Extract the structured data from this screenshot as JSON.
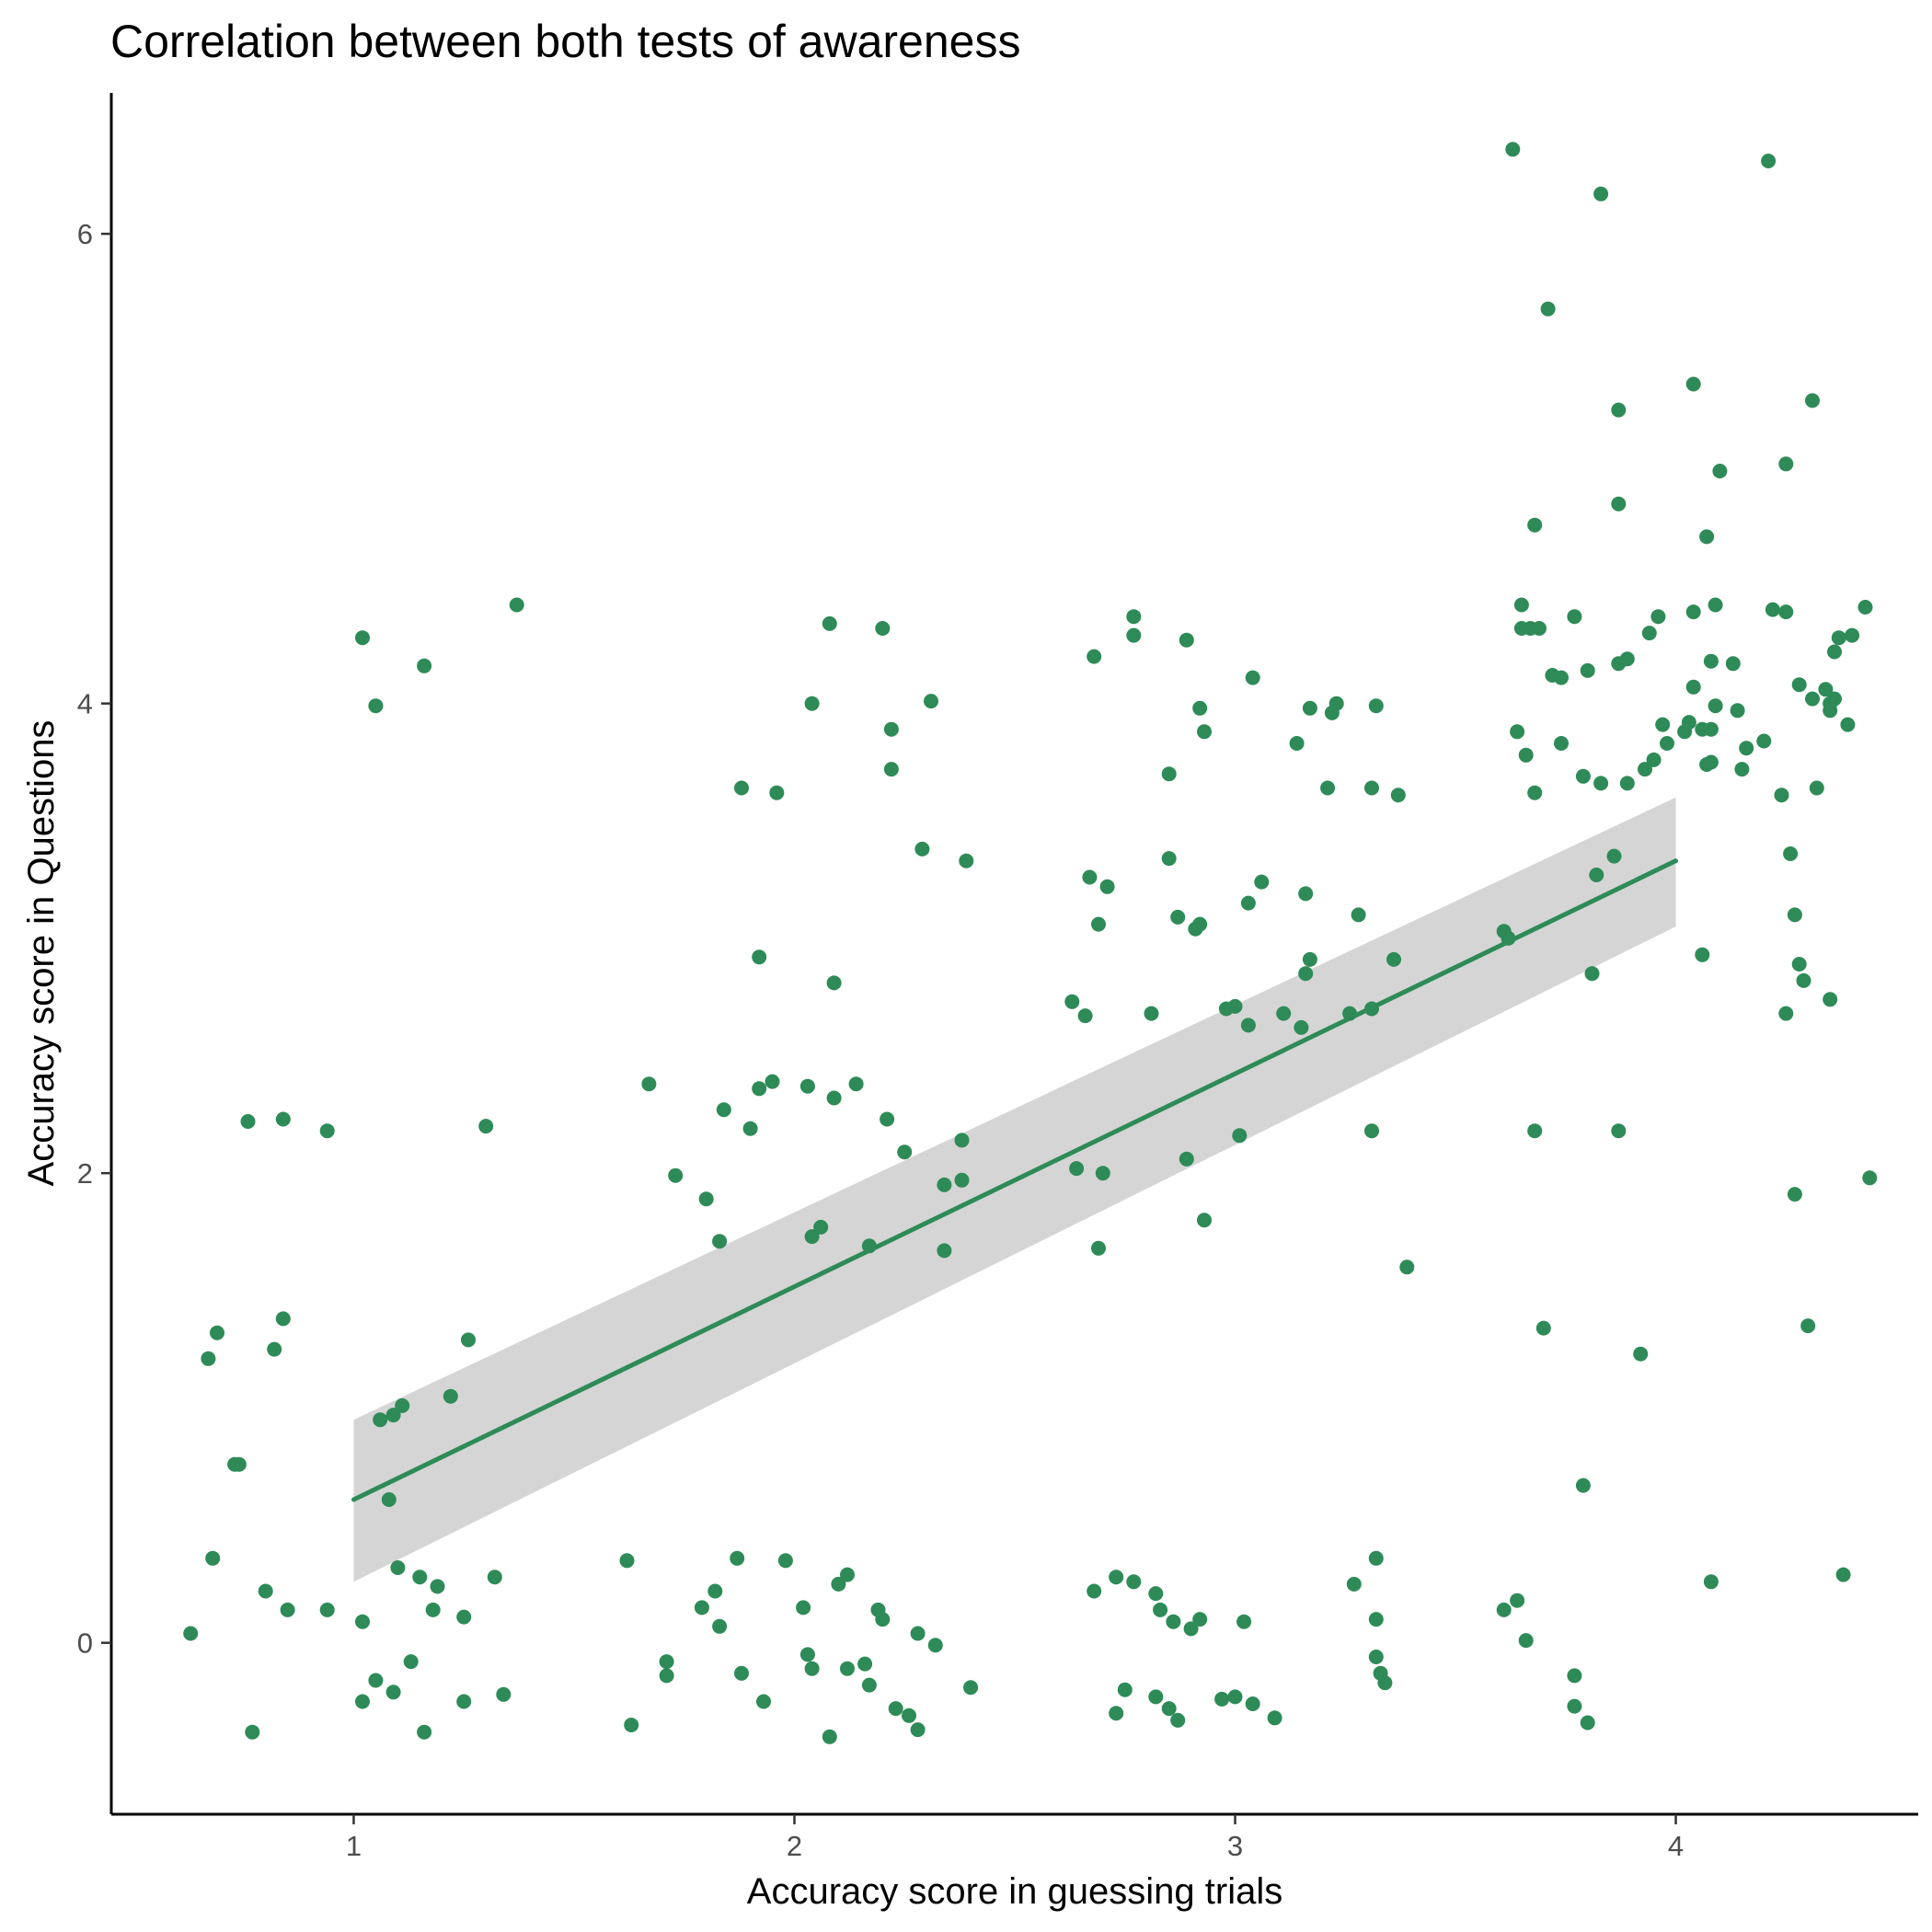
{
  "chart_data": {
    "type": "scatter",
    "title": "Correlation between both tests of awareness",
    "xlabel": "Accuracy score in guessing trials",
    "ylabel": "Accuracy score in Questions",
    "xlim": [
      0.45,
      4.55
    ],
    "ylim": [
      -0.73,
      6.6
    ],
    "xticks": [
      1,
      2,
      3,
      4
    ],
    "yticks": [
      0,
      2,
      4,
      6
    ],
    "grid": false,
    "legend": "none",
    "colors": {
      "points": "#2e8b57",
      "fit_line": "#2e8b57",
      "confidence_band": "#d3d3d3"
    },
    "fit": {
      "method": "linear",
      "x": [
        1,
        4
      ],
      "y": [
        0.61,
        3.33
      ],
      "ci_lower": [
        0.26,
        3.05
      ],
      "ci_upper": [
        0.95,
        3.6
      ]
    },
    "points": [
      [
        0.63,
        0.04
      ],
      [
        0.67,
        1.21
      ],
      [
        0.68,
        0.36
      ],
      [
        0.69,
        1.32
      ],
      [
        0.73,
        0.76
      ],
      [
        0.74,
        0.76
      ],
      [
        0.76,
        2.22
      ],
      [
        0.77,
        -0.38
      ],
      [
        0.8,
        0.22
      ],
      [
        0.82,
        1.25
      ],
      [
        0.84,
        1.38
      ],
      [
        0.84,
        2.23
      ],
      [
        0.85,
        0.14
      ],
      [
        0.94,
        0.14
      ],
      [
        0.94,
        2.18
      ],
      [
        1.02,
        4.28
      ],
      [
        1.02,
        0.09
      ],
      [
        1.02,
        -0.25
      ],
      [
        1.05,
        3.99
      ],
      [
        1.05,
        -0.16
      ],
      [
        1.06,
        0.95
      ],
      [
        1.08,
        0.61
      ],
      [
        1.09,
        0.97
      ],
      [
        1.09,
        -0.21
      ],
      [
        1.1,
        0.32
      ],
      [
        1.11,
        1.01
      ],
      [
        1.13,
        -0.08
      ],
      [
        1.15,
        0.28
      ],
      [
        1.16,
        4.16
      ],
      [
        1.16,
        -0.38
      ],
      [
        1.18,
        0.14
      ],
      [
        1.19,
        0.24
      ],
      [
        1.22,
        1.05
      ],
      [
        1.25,
        0.11
      ],
      [
        1.25,
        -0.25
      ],
      [
        1.26,
        1.29
      ],
      [
        1.3,
        2.2
      ],
      [
        1.32,
        0.28
      ],
      [
        1.34,
        -0.22
      ],
      [
        1.37,
        4.42
      ],
      [
        1.62,
        0.35
      ],
      [
        1.63,
        -0.35
      ],
      [
        1.67,
        2.38
      ],
      [
        1.71,
        -0.08
      ],
      [
        1.71,
        -0.14
      ],
      [
        1.73,
        1.99
      ],
      [
        1.79,
        0.15
      ],
      [
        1.8,
        1.89
      ],
      [
        1.82,
        0.22
      ],
      [
        1.83,
        0.07
      ],
      [
        1.83,
        1.71
      ],
      [
        1.84,
        2.27
      ],
      [
        1.87,
        0.36
      ],
      [
        1.88,
        3.64
      ],
      [
        1.88,
        -0.13
      ],
      [
        1.9,
        2.19
      ],
      [
        1.92,
        2.36
      ],
      [
        1.92,
        2.92
      ],
      [
        1.93,
        -0.25
      ],
      [
        1.95,
        2.39
      ],
      [
        1.96,
        3.62
      ],
      [
        1.98,
        0.35
      ],
      [
        2.02,
        0.15
      ],
      [
        2.03,
        -0.05
      ],
      [
        2.03,
        2.37
      ],
      [
        2.04,
        -0.11
      ],
      [
        2.04,
        4.0
      ],
      [
        2.04,
        1.73
      ],
      [
        2.06,
        1.77
      ],
      [
        2.08,
        4.34
      ],
      [
        2.08,
        -0.4
      ],
      [
        2.09,
        2.81
      ],
      [
        2.09,
        2.32
      ],
      [
        2.1,
        0.25
      ],
      [
        2.12,
        0.29
      ],
      [
        2.12,
        -0.11
      ],
      [
        2.14,
        2.38
      ],
      [
        2.16,
        -0.09
      ],
      [
        2.17,
        1.69
      ],
      [
        2.17,
        -0.18
      ],
      [
        2.19,
        0.14
      ],
      [
        2.2,
        0.1
      ],
      [
        2.2,
        4.32
      ],
      [
        2.21,
        2.23
      ],
      [
        2.22,
        3.89
      ],
      [
        2.22,
        3.72
      ],
      [
        2.23,
        -0.28
      ],
      [
        2.25,
        2.09
      ],
      [
        2.26,
        -0.31
      ],
      [
        2.28,
        0.04
      ],
      [
        2.28,
        -0.37
      ],
      [
        2.29,
        3.38
      ],
      [
        2.31,
        4.01
      ],
      [
        2.32,
        -0.01
      ],
      [
        2.34,
        1.67
      ],
      [
        2.34,
        1.95
      ],
      [
        2.38,
        2.14
      ],
      [
        2.38,
        1.97
      ],
      [
        2.39,
        3.33
      ],
      [
        2.4,
        -0.19
      ],
      [
        2.63,
        2.73
      ],
      [
        2.64,
        2.02
      ],
      [
        2.66,
        2.67
      ],
      [
        2.67,
        3.26
      ],
      [
        2.68,
        0.22
      ],
      [
        2.68,
        4.2
      ],
      [
        2.69,
        3.06
      ],
      [
        2.69,
        1.68
      ],
      [
        2.7,
        2.0
      ],
      [
        2.71,
        3.22
      ],
      [
        2.73,
        -0.3
      ],
      [
        2.73,
        0.28
      ],
      [
        2.75,
        -0.2
      ],
      [
        2.77,
        4.37
      ],
      [
        2.77,
        4.29
      ],
      [
        2.77,
        0.26
      ],
      [
        2.81,
        2.68
      ],
      [
        2.82,
        0.21
      ],
      [
        2.82,
        -0.23
      ],
      [
        2.83,
        0.14
      ],
      [
        2.85,
        3.7
      ],
      [
        2.85,
        3.34
      ],
      [
        2.85,
        -0.28
      ],
      [
        2.86,
        0.09
      ],
      [
        2.87,
        3.09
      ],
      [
        2.87,
        -0.33
      ],
      [
        2.89,
        2.06
      ],
      [
        2.89,
        4.27
      ],
      [
        2.9,
        0.06
      ],
      [
        2.91,
        3.04
      ],
      [
        2.92,
        3.06
      ],
      [
        2.92,
        3.98
      ],
      [
        2.92,
        0.1
      ],
      [
        2.93,
        3.88
      ],
      [
        2.93,
        1.8
      ],
      [
        2.97,
        -0.24
      ],
      [
        2.98,
        2.7
      ],
      [
        3.0,
        2.71
      ],
      [
        3.0,
        -0.23
      ],
      [
        3.01,
        2.16
      ],
      [
        3.02,
        0.09
      ],
      [
        3.03,
        3.15
      ],
      [
        3.03,
        2.63
      ],
      [
        3.04,
        4.11
      ],
      [
        3.04,
        -0.26
      ],
      [
        3.06,
        3.24
      ],
      [
        3.09,
        -0.32
      ],
      [
        3.11,
        2.68
      ],
      [
        3.14,
        3.83
      ],
      [
        3.15,
        2.62
      ],
      [
        3.16,
        3.19
      ],
      [
        3.16,
        2.85
      ],
      [
        3.17,
        3.98
      ],
      [
        3.17,
        2.91
      ],
      [
        3.21,
        3.64
      ],
      [
        3.22,
        3.96
      ],
      [
        3.23,
        4.0
      ],
      [
        3.26,
        2.68
      ],
      [
        3.27,
        0.25
      ],
      [
        3.28,
        3.1
      ],
      [
        3.31,
        2.7
      ],
      [
        3.31,
        3.64
      ],
      [
        3.31,
        2.18
      ],
      [
        3.32,
        0.36
      ],
      [
        3.32,
        0.1
      ],
      [
        3.32,
        -0.06
      ],
      [
        3.32,
        3.99
      ],
      [
        3.33,
        -0.13
      ],
      [
        3.34,
        -0.17
      ],
      [
        3.36,
        2.91
      ],
      [
        3.37,
        3.61
      ],
      [
        3.39,
        1.6
      ],
      [
        3.61,
        3.03
      ],
      [
        3.61,
        0.14
      ],
      [
        3.62,
        3.0
      ],
      [
        3.63,
        6.36
      ],
      [
        3.64,
        0.18
      ],
      [
        3.64,
        3.88
      ],
      [
        3.65,
        4.42
      ],
      [
        3.65,
        4.32
      ],
      [
        3.66,
        0.01
      ],
      [
        3.66,
        3.78
      ],
      [
        3.67,
        4.32
      ],
      [
        3.68,
        4.76
      ],
      [
        3.68,
        3.62
      ],
      [
        3.68,
        2.18
      ],
      [
        3.69,
        4.32
      ],
      [
        3.7,
        1.34
      ],
      [
        3.71,
        5.68
      ],
      [
        3.72,
        4.12
      ],
      [
        3.74,
        3.83
      ],
      [
        3.74,
        4.11
      ],
      [
        3.77,
        4.37
      ],
      [
        3.77,
        -0.14
      ],
      [
        3.77,
        -0.27
      ],
      [
        3.79,
        3.69
      ],
      [
        3.79,
        0.67
      ],
      [
        3.8,
        -0.34
      ],
      [
        3.8,
        4.14
      ],
      [
        3.81,
        2.85
      ],
      [
        3.82,
        3.27
      ],
      [
        3.83,
        6.17
      ],
      [
        3.83,
        3.66
      ],
      [
        3.86,
        3.35
      ],
      [
        3.87,
        4.85
      ],
      [
        3.87,
        5.25
      ],
      [
        3.87,
        2.18
      ],
      [
        3.87,
        4.17
      ],
      [
        3.89,
        4.19
      ],
      [
        3.89,
        3.66
      ],
      [
        3.92,
        1.23
      ],
      [
        3.93,
        3.72
      ],
      [
        3.94,
        4.3
      ],
      [
        3.95,
        3.76
      ],
      [
        3.96,
        4.37
      ],
      [
        3.97,
        3.91
      ],
      [
        3.98,
        3.83
      ],
      [
        4.02,
        3.88
      ],
      [
        4.03,
        3.92
      ],
      [
        4.04,
        5.36
      ],
      [
        4.04,
        4.39
      ],
      [
        4.04,
        4.07
      ],
      [
        4.06,
        3.89
      ],
      [
        4.06,
        2.93
      ],
      [
        4.07,
        3.74
      ],
      [
        4.07,
        4.71
      ],
      [
        4.08,
        3.89
      ],
      [
        4.08,
        4.18
      ],
      [
        4.08,
        3.75
      ],
      [
        4.08,
        0.26
      ],
      [
        4.09,
        4.42
      ],
      [
        4.09,
        3.99
      ],
      [
        4.1,
        4.99
      ],
      [
        4.13,
        4.17
      ],
      [
        4.14,
        3.97
      ],
      [
        4.15,
        3.72
      ],
      [
        4.16,
        3.81
      ],
      [
        4.2,
        3.84
      ],
      [
        4.21,
        6.31
      ],
      [
        4.22,
        4.4
      ],
      [
        4.24,
        3.61
      ],
      [
        4.25,
        5.02
      ],
      [
        4.25,
        2.68
      ],
      [
        4.25,
        4.39
      ],
      [
        4.26,
        3.36
      ],
      [
        4.27,
        3.1
      ],
      [
        4.27,
        1.91
      ],
      [
        4.28,
        2.89
      ],
      [
        4.28,
        4.08
      ],
      [
        4.29,
        2.82
      ],
      [
        4.3,
        1.35
      ],
      [
        4.31,
        4.02
      ],
      [
        4.31,
        5.29
      ],
      [
        4.32,
        3.64
      ],
      [
        4.34,
        4.06
      ],
      [
        4.35,
        4.0
      ],
      [
        4.35,
        2.74
      ],
      [
        4.35,
        3.97
      ],
      [
        4.36,
        4.22
      ],
      [
        4.36,
        4.02
      ],
      [
        4.37,
        4.28
      ],
      [
        4.38,
        0.29
      ],
      [
        4.39,
        3.91
      ],
      [
        4.4,
        4.29
      ],
      [
        4.43,
        4.41
      ],
      [
        4.44,
        1.98
      ]
    ]
  }
}
